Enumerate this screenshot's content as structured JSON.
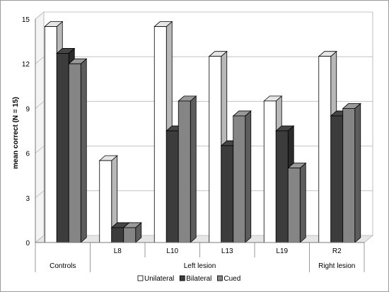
{
  "chart_data": {
    "type": "bar",
    "style": "3d-clustered-column",
    "ylabel": "mean correct (N = 15)",
    "ylim": [
      0,
      15
    ],
    "yticks": [
      0,
      3,
      6,
      9,
      12,
      15
    ],
    "grid": "horizontal",
    "legend_position": "bottom",
    "categories": [
      "Controls",
      "L8",
      "L10",
      "L13",
      "L19",
      "R2"
    ],
    "groups": [
      {
        "label": "Controls",
        "categories": [
          "Controls"
        ]
      },
      {
        "label": "Left lesion",
        "categories": [
          "L8",
          "L10",
          "L13",
          "L19"
        ]
      },
      {
        "label": "Right lesion",
        "categories": [
          "R2"
        ]
      }
    ],
    "category_labels": [
      "",
      "L8",
      "L10",
      "L13",
      "L19",
      "R2"
    ],
    "series": [
      {
        "name": "Unilateral",
        "color": "#ffffff",
        "values": [
          14.5,
          5.5,
          14.5,
          12.5,
          9.5,
          12.5
        ]
      },
      {
        "name": "Bilateral",
        "color": "#3c3c3c",
        "values": [
          12.7,
          1,
          7.5,
          6.5,
          7.5,
          8.5
        ]
      },
      {
        "name": "Cued",
        "color": "#858585",
        "values": [
          12,
          1,
          9.5,
          8.5,
          5,
          9
        ]
      }
    ]
  }
}
